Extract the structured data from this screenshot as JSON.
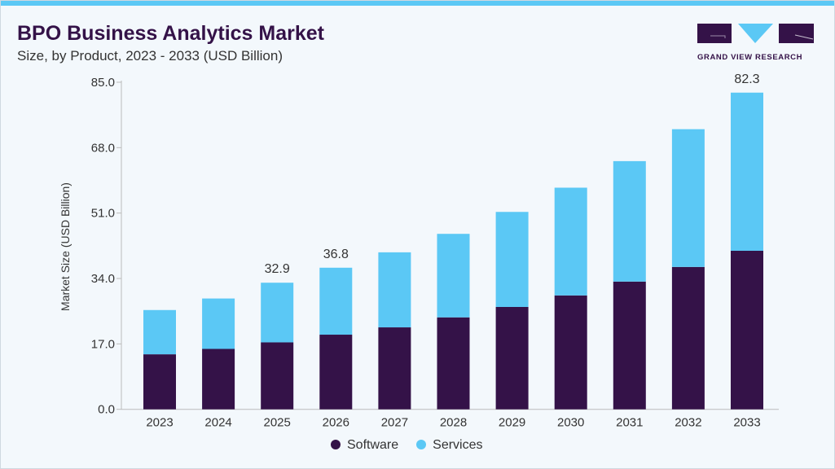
{
  "header": {
    "title": "BPO Business Analytics Market",
    "subtitle": "Size, by Product, 2023 - 2033 (USD Billion)"
  },
  "logo": {
    "text": "GRAND VIEW RESEARCH"
  },
  "colors": {
    "software": "#341248",
    "services": "#5bc8f5",
    "accent": "#5bc8f5"
  },
  "chart_data": {
    "type": "bar",
    "stacked": true,
    "title": "BPO Business Analytics Market",
    "subtitle": "Size, by Product, 2023 - 2033 (USD Billion)",
    "xlabel": "",
    "ylabel": "Market Size (USD Billion)",
    "ylim": [
      0,
      85
    ],
    "yticks": [
      "0.0",
      "17.0",
      "34.0",
      "51.0",
      "68.0",
      "85.0"
    ],
    "categories": [
      "2023",
      "2024",
      "2025",
      "2026",
      "2027",
      "2028",
      "2029",
      "2030",
      "2031",
      "2032",
      "2033"
    ],
    "series": [
      {
        "name": "Software",
        "values": [
          14.3,
          15.7,
          17.4,
          19.4,
          21.3,
          23.9,
          26.6,
          29.6,
          33.2,
          37.0,
          41.2
        ]
      },
      {
        "name": "Services",
        "values": [
          11.5,
          13.1,
          15.5,
          17.4,
          19.5,
          21.7,
          24.7,
          28.0,
          31.3,
          35.8,
          41.1
        ]
      }
    ],
    "data_labels": [
      {
        "category": "2025",
        "text": "32.9"
      },
      {
        "category": "2026",
        "text": "36.8"
      },
      {
        "category": "2033",
        "text": "82.3"
      }
    ],
    "legend": "bottom",
    "grid": false
  }
}
